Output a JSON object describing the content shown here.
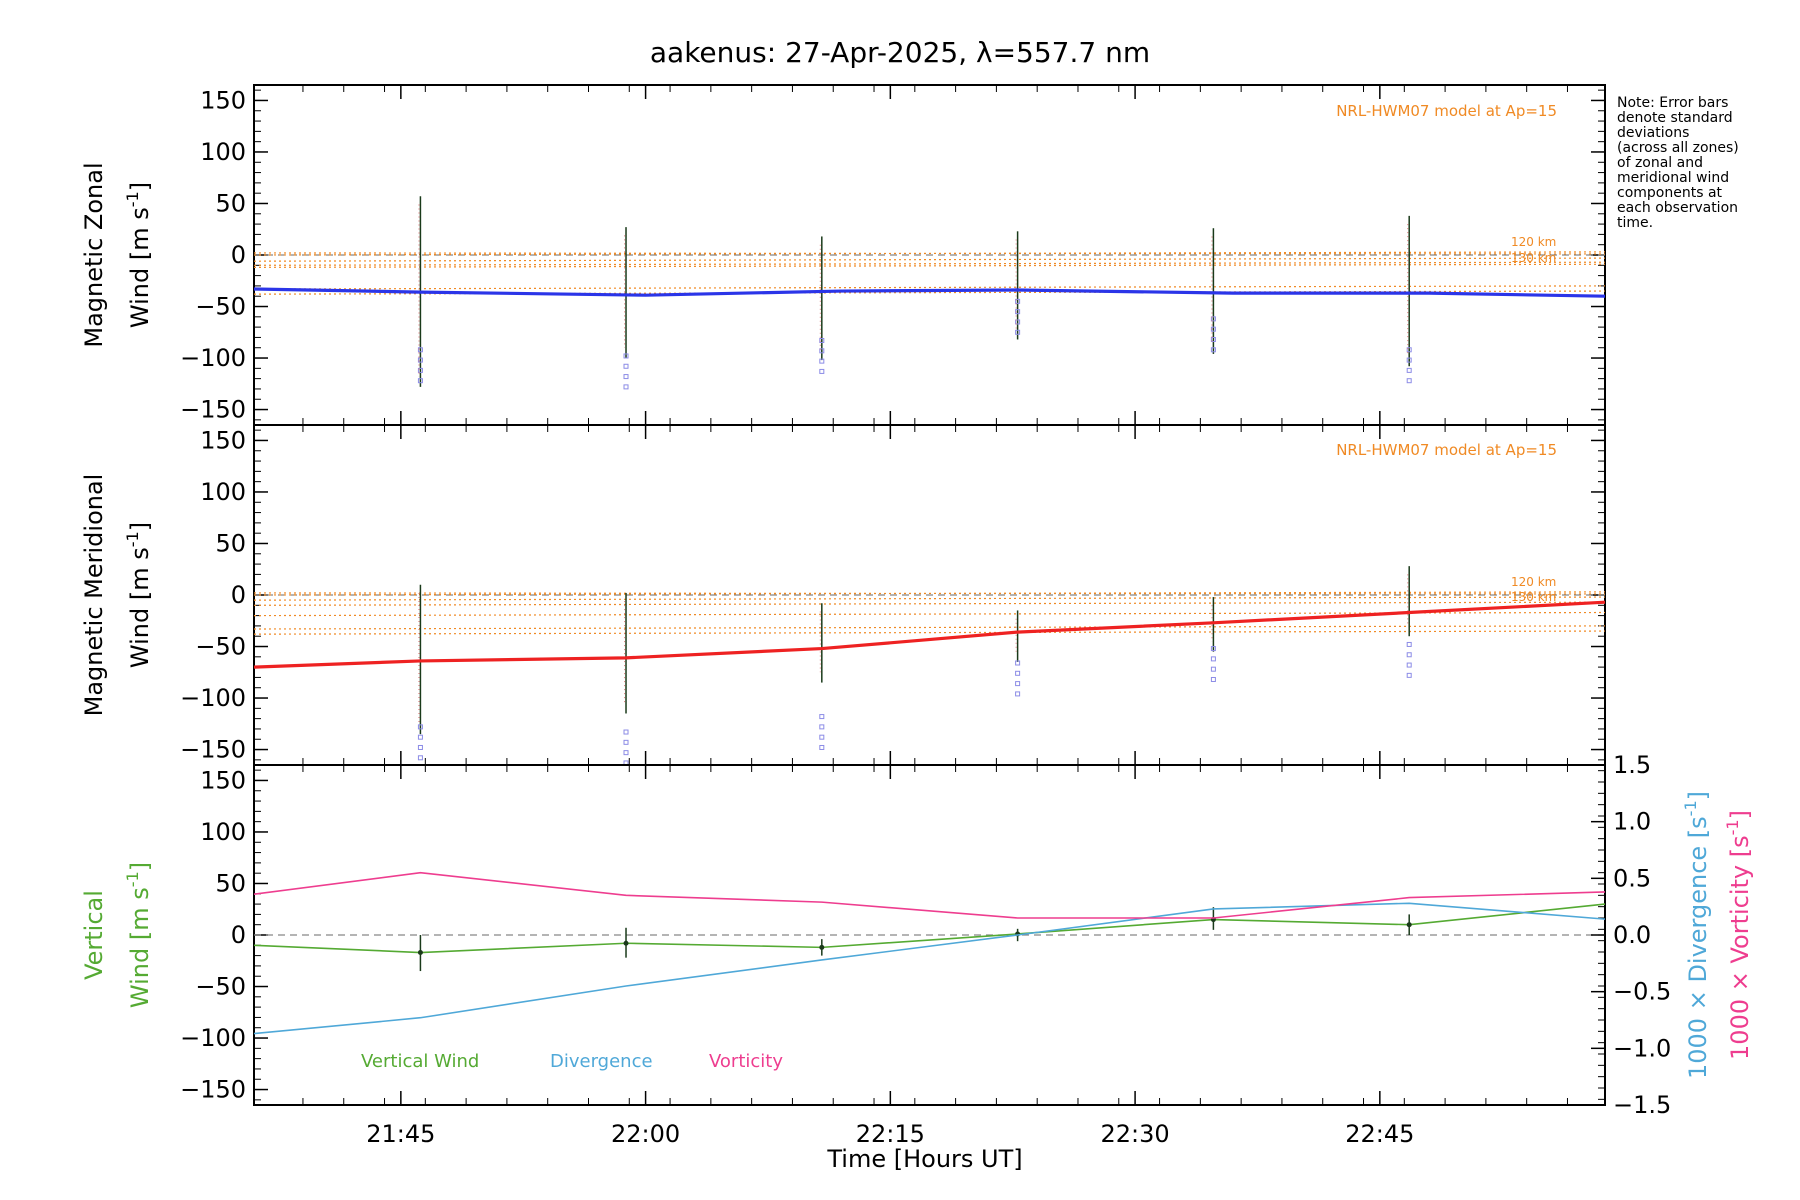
{
  "title": "aakenus: 27-Apr-2025, λ=557.7 nm",
  "note": {
    "lines": [
      "Note: Error bars",
      "denote standard",
      "deviations",
      "(across all zones)",
      "of zonal and",
      "meridional wind",
      "components at",
      "each observation",
      "time."
    ]
  },
  "colors": {
    "zonal": "#2b35e8",
    "meridional": "#ee2222",
    "vertical": "#55aa33",
    "divergence": "#4fa8d8",
    "vorticity": "#ee3d8f",
    "model": "#f08a24",
    "errorbar": "#1a3a1a",
    "scatter": "#8c8ce6",
    "axis": "#000000"
  },
  "chart_data": [
    {
      "type": "line",
      "panel": "zonal",
      "ylabel_line1": "Magnetic Zonal",
      "ylabel_line2": "Wind [m s",
      "ylabel_sup": "-1",
      "ylabel_close": "]",
      "model_label": "NRL-HWM07 model at Ap=15",
      "model_alt_labels": [
        "120 km",
        "130 km"
      ],
      "ylim": [
        -165,
        165
      ],
      "yticks": [
        150,
        100,
        50,
        0,
        -50,
        -100,
        -150
      ],
      "x": [
        21.6,
        21.77,
        22.0,
        22.2,
        22.38,
        22.6,
        22.8,
        22.98
      ],
      "values": [
        -33,
        -36,
        -39,
        -35,
        -34,
        -37,
        -37,
        -40
      ],
      "errorbars": [
        {
          "x": 21.77,
          "lo": -128,
          "hi": 57
        },
        {
          "x": 21.98,
          "lo": -100,
          "hi": 27
        },
        {
          "x": 22.18,
          "lo": -102,
          "hi": 18
        },
        {
          "x": 22.38,
          "lo": -82,
          "hi": 23
        },
        {
          "x": 22.58,
          "lo": -96,
          "hi": 26
        },
        {
          "x": 22.78,
          "lo": -108,
          "hi": 38
        }
      ],
      "scatter_min": [
        -122,
        -128,
        -113,
        -75,
        -92,
        -122
      ],
      "model_lines": [
        2,
        0,
        -6,
        -10,
        -12,
        -33,
        -38
      ]
    },
    {
      "type": "line",
      "panel": "meridional",
      "ylabel_line1": "Magnetic Meridional",
      "ylabel_line2": "Wind [m s",
      "ylabel_sup": "-1",
      "ylabel_close": "]",
      "model_label": "NRL-HWM07 model at Ap=15",
      "model_alt_labels": [
        "120 km",
        "130 km"
      ],
      "ylim": [
        -165,
        165
      ],
      "yticks": [
        150,
        100,
        50,
        0,
        -50,
        -100,
        -150
      ],
      "x": [
        21.6,
        21.77,
        21.98,
        22.18,
        22.38,
        22.58,
        22.78,
        22.98
      ],
      "values": [
        -70,
        -64,
        -61,
        -52,
        -36,
        -27,
        -17,
        -7
      ],
      "errorbars": [
        {
          "x": 21.77,
          "lo": -135,
          "hi": 10
        },
        {
          "x": 21.98,
          "lo": -115,
          "hi": 2
        },
        {
          "x": 22.18,
          "lo": -85,
          "hi": -8
        },
        {
          "x": 22.38,
          "lo": -65,
          "hi": -15
        },
        {
          "x": 22.58,
          "lo": -55,
          "hi": -2
        },
        {
          "x": 22.78,
          "lo": -40,
          "hi": 28
        }
      ],
      "scatter_min": [
        -158,
        -163,
        -148,
        -96,
        -82,
        -78
      ],
      "model_lines": [
        2,
        0,
        -5,
        -10,
        -20,
        -33,
        -38
      ]
    },
    {
      "type": "line",
      "panel": "vertical",
      "ylabel_line1": "Vertical",
      "ylabel_line2": "Wind [m s",
      "ylabel_sup": "-1",
      "ylabel_close": "]",
      "y2label_div": "1000 × Divergence [s",
      "y2label_vor": "1000 × Vorticity [s",
      "y2label_sup": "-1",
      "y2label_close": "]",
      "ylim": [
        -165,
        165
      ],
      "yticks": [
        150,
        100,
        50,
        0,
        -50,
        -100,
        -150
      ],
      "y2lim": [
        -1.5,
        1.5
      ],
      "y2ticks": [
        1.5,
        1.0,
        0.5,
        0.0,
        -0.5,
        -1.0,
        -1.5
      ],
      "y2ticklabels": [
        "1.5",
        "1.0",
        "0.5",
        "0.0",
        "−0.5",
        "−1.0",
        "−1.5"
      ],
      "legend": [
        "Vertical Wind",
        "Divergence",
        "Vorticity"
      ],
      "series": [
        {
          "name": "Vertical Wind",
          "x": [
            21.6,
            21.77,
            21.98,
            22.18,
            22.38,
            22.58,
            22.78,
            22.98
          ],
          "values": [
            -10,
            -17,
            -8,
            -12,
            1,
            15,
            10,
            30
          ]
        },
        {
          "name": "Divergence",
          "axis": "right",
          "x": [
            21.6,
            21.77,
            21.98,
            22.18,
            22.38,
            22.58,
            22.78,
            22.98
          ],
          "values": [
            -0.87,
            -0.73,
            -0.45,
            -0.22,
            0.0,
            0.23,
            0.28,
            0.14
          ]
        },
        {
          "name": "Vorticity",
          "axis": "right",
          "x": [
            21.6,
            21.77,
            21.98,
            22.18,
            22.38,
            22.58,
            22.78,
            22.98
          ],
          "values": [
            0.36,
            0.55,
            0.35,
            0.29,
            0.15,
            0.15,
            0.33,
            0.38
          ]
        }
      ],
      "errorbars": [
        {
          "x": 21.77,
          "lo": -35,
          "hi": 0
        },
        {
          "x": 21.98,
          "lo": -22,
          "hi": 7
        },
        {
          "x": 22.18,
          "lo": -20,
          "hi": -4
        },
        {
          "x": 22.38,
          "lo": -6,
          "hi": 6
        },
        {
          "x": 22.58,
          "lo": 5,
          "hi": 27
        },
        {
          "x": 22.78,
          "lo": 0,
          "hi": 20
        }
      ]
    }
  ],
  "xaxis": {
    "label": "Time [Hours UT]",
    "xlim": [
      21.6,
      22.98
    ],
    "ticks": [
      21.75,
      22.0,
      22.25,
      22.5,
      22.75
    ],
    "ticklabels": [
      "21:45",
      "22:00",
      "22:15",
      "22:30",
      "22:45"
    ]
  }
}
